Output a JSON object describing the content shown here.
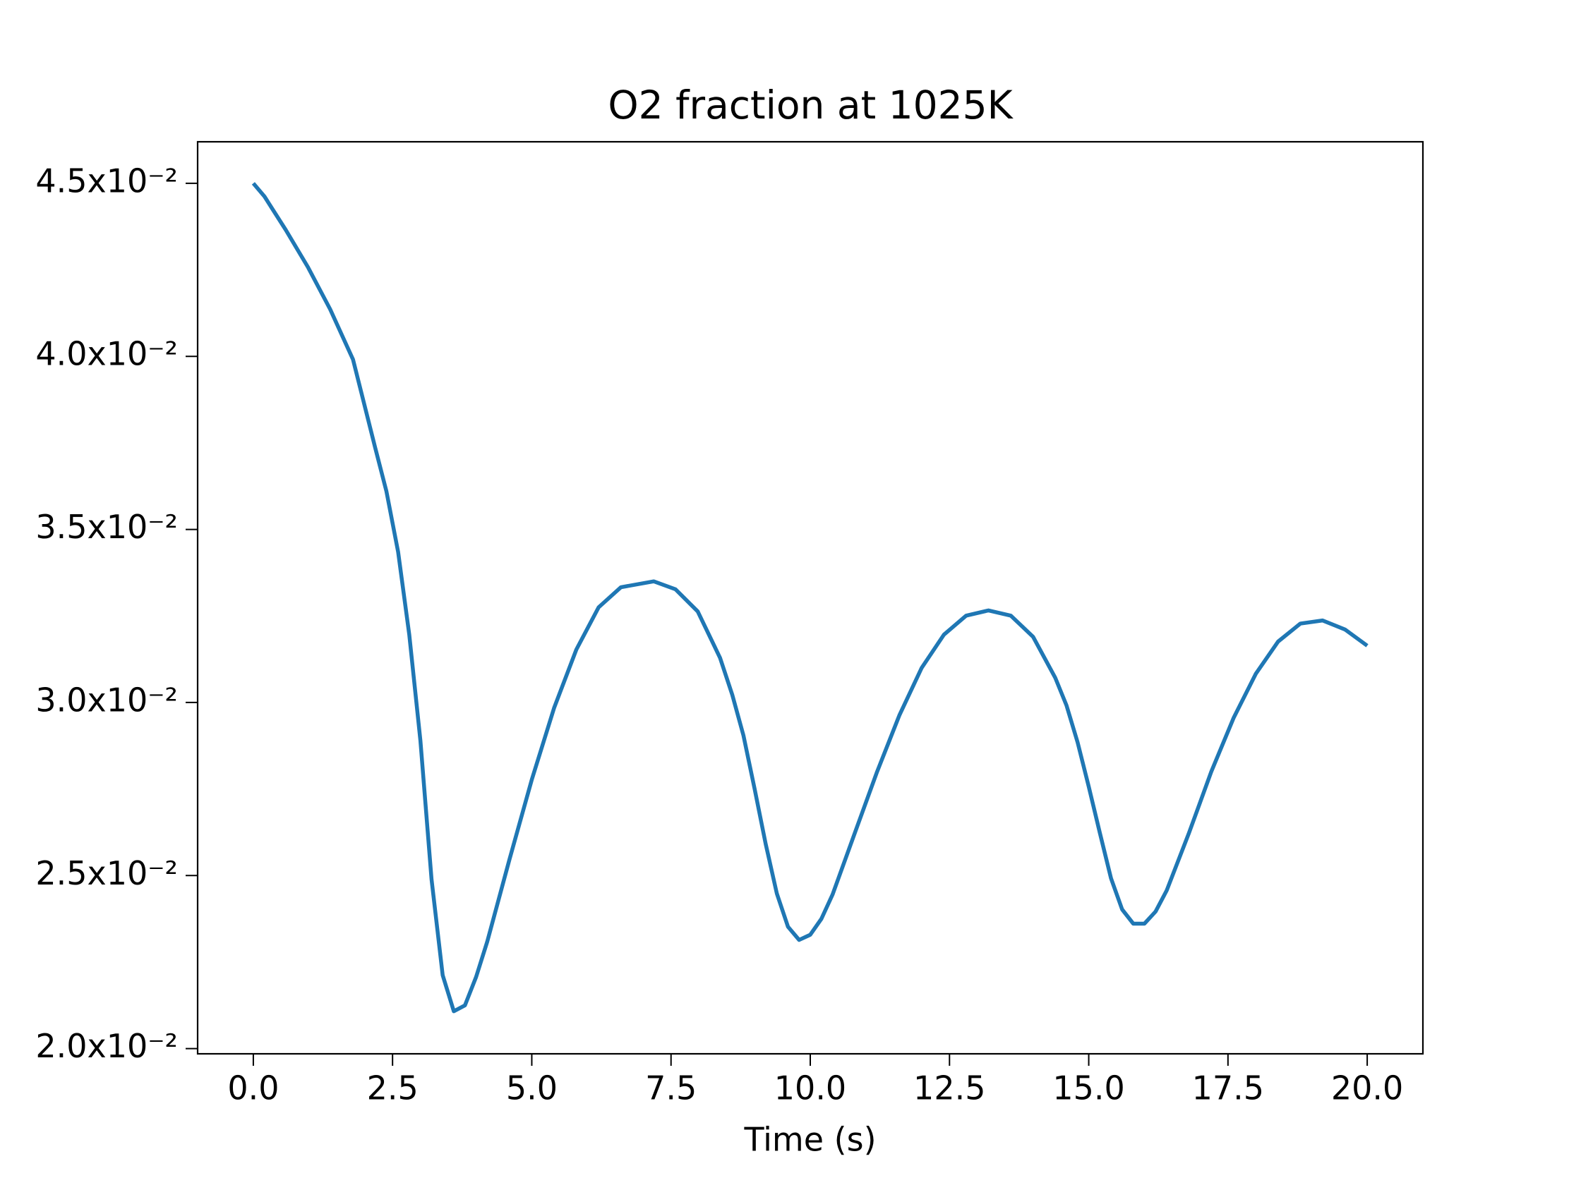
{
  "chart_data": {
    "type": "line",
    "title": "O2 fraction at 1025K",
    "xlabel": "Time (s)",
    "xlim": [
      -1.0,
      21.0
    ],
    "ylim": [
      0.01985,
      0.0462
    ],
    "xticks": [
      {
        "value": 0,
        "label": "0.0"
      },
      2.5,
      {
        "value": 5,
        "label": "5.0"
      },
      7.5,
      {
        "value": 10,
        "label": "10.0"
      },
      12.5,
      {
        "value": 15,
        "label": "15.0"
      },
      17.5,
      {
        "value": 20,
        "label": "20.0"
      }
    ],
    "yticks": [
      {
        "value": 0.02,
        "label": "2.0x10⁻²"
      },
      {
        "value": 0.025,
        "label": "2.5x10⁻²"
      },
      {
        "value": 0.03,
        "label": "3.0x10⁻²"
      },
      {
        "value": 0.035,
        "label": "3.5x10⁻²"
      },
      {
        "value": 0.04,
        "label": "4.0x10⁻²"
      },
      {
        "value": 0.045,
        "label": "4.5x10⁻²"
      }
    ],
    "x": [
      0,
      0.2,
      0.58,
      0.98,
      1.38,
      1.79,
      2.19,
      2.39,
      2.6,
      2.8,
      3.0,
      3.2,
      3.4,
      3.6,
      3.8,
      4.0,
      4.2,
      4.6,
      5.0,
      5.4,
      5.8,
      6.2,
      6.6,
      7.19,
      7.58,
      7.98,
      8.38,
      8.6,
      8.8,
      9.0,
      9.2,
      9.4,
      9.6,
      9.8,
      10.0,
      10.2,
      10.4,
      10.8,
      11.2,
      11.6,
      12.0,
      12.4,
      12.8,
      13.2,
      13.6,
      14.0,
      14.4,
      14.6,
      14.8,
      15.0,
      15.2,
      15.4,
      15.6,
      15.8,
      16.0,
      16.2,
      16.4,
      16.8,
      17.2,
      17.6,
      18.0,
      18.4,
      18.8,
      19.2,
      19.6,
      20.0
    ],
    "series": [
      {
        "color": "#1f77b4",
        "values": [
          0.045,
          0.04462,
          0.04366,
          0.04258,
          0.04136,
          0.03991,
          0.03735,
          0.0361,
          0.03435,
          0.03196,
          0.0289,
          0.02489,
          0.02212,
          0.02108,
          0.02125,
          0.02207,
          0.02309,
          0.02547,
          0.02777,
          0.02984,
          0.03153,
          0.03275,
          0.03333,
          0.0335,
          0.03327,
          0.03263,
          0.03129,
          0.03022,
          0.02905,
          0.02751,
          0.02591,
          0.02448,
          0.02352,
          0.02314,
          0.02329,
          0.02375,
          0.02445,
          0.02623,
          0.028,
          0.02963,
          0.031,
          0.03196,
          0.03251,
          0.03266,
          0.03251,
          0.0319,
          0.03071,
          0.02992,
          0.02885,
          0.02757,
          0.02623,
          0.02492,
          0.02402,
          0.02361,
          0.02361,
          0.02396,
          0.02457,
          0.02623,
          0.028,
          0.02955,
          0.03083,
          0.03176,
          0.03228,
          0.03237,
          0.03211,
          0.03164
        ]
      }
    ]
  }
}
